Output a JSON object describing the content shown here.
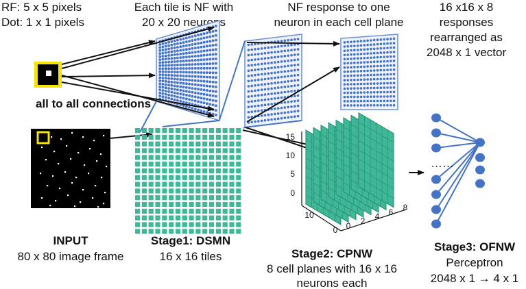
{
  "labels": {
    "rf": "RF: 5 x 5 pixels",
    "dot": "Dot: 1 x 1  pixels",
    "tile_line1": "Each tile is NF with",
    "tile_line2": "20 x 20 neurons",
    "nf_line1": "NF response to one",
    "nf_line2": "neuron in each cell plane",
    "resp_line1": "16 x16 x 8",
    "resp_line2": "responses",
    "resp_line3": "rearranged as",
    "resp_line4": "2048 x 1 vector",
    "all_to_all": "all to all connections",
    "dots": "……"
  },
  "stages": {
    "input_title": "INPUT",
    "input_sub": "80 x 80 image frame",
    "s1_title": "Stage1: DSMN",
    "s1_sub": "16 x 16 tiles",
    "s2_title": "Stage2: CPNW",
    "s2_sub1": "8 cell planes with 16 x 16",
    "s2_sub2": "neurons each",
    "s3_title": "Stage3: OFNW",
    "s3_sub1": "Perceptron",
    "s3_sub2": "2048 x 1 → 4 x 1"
  },
  "cube_axes": {
    "z_ticks": [
      "15",
      "10",
      "5",
      "0"
    ],
    "y_ticks": [
      "10",
      "0"
    ],
    "x_ticks": [
      "0",
      "2",
      "4",
      "6",
      "8"
    ]
  },
  "colors": {
    "teal": "#3fb89a",
    "teal_dark": "#2d8f73",
    "blue": "#4472c4",
    "yellow": "#f5e400",
    "arrow": "#111111"
  }
}
